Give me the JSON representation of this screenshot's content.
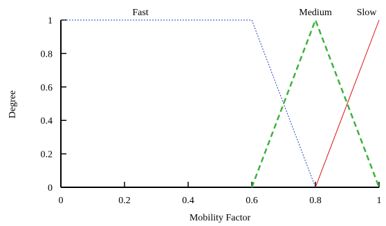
{
  "chart_data": {
    "type": "line",
    "title": "",
    "xlabel": "Mobility Factor",
    "ylabel": "Degree",
    "xlim": [
      0,
      1
    ],
    "ylim": [
      0,
      1
    ],
    "x_ticks": [
      "0",
      "0.2",
      "0.4",
      "0.6",
      "0.8",
      "1"
    ],
    "y_ticks": [
      "0",
      "0.2",
      "0.4",
      "0.6",
      "0.8",
      "1"
    ],
    "grid": false,
    "legend": "none",
    "series": [
      {
        "name": "Fast",
        "x": [
          0,
          0.6,
          0.8
        ],
        "y": [
          1,
          1,
          0
        ],
        "color": "#1f3fbf",
        "style": "dotted"
      },
      {
        "name": "Medium",
        "x": [
          0.6,
          0.8,
          1.0
        ],
        "y": [
          0,
          1,
          0
        ],
        "color": "#3cb33c",
        "style": "dashed"
      },
      {
        "name": "Slow",
        "x": [
          0.8,
          1.0
        ],
        "y": [
          0,
          1
        ],
        "color": "#e01010",
        "style": "solid"
      }
    ]
  }
}
